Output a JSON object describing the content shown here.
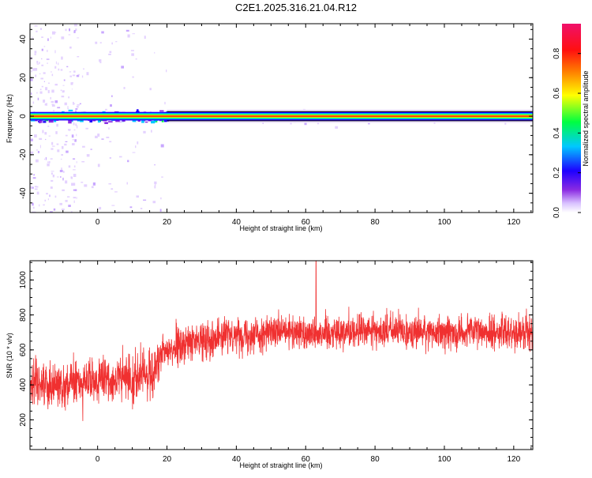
{
  "title": "C2E1.2025.316.21.04.R12",
  "colors": {
    "snr_line": "#f03030",
    "axis": "#000000",
    "colormap": [
      "#ffffff",
      "#c8a8ff",
      "#8a2be2",
      "#1e00ff",
      "#00c8ff",
      "#00ff40",
      "#ffff00",
      "#ff7a00",
      "#ff1010",
      "#f0106a"
    ]
  },
  "chart_data": [
    {
      "type": "heatmap",
      "name": "spectrogram",
      "xlabel": "Height of straight line (km)",
      "ylabel": "Frequency (Hz)",
      "xlim": [
        -19.5,
        125.5
      ],
      "ylim": [
        -50,
        48
      ],
      "xticks": [
        0,
        20,
        40,
        60,
        80,
        100,
        120
      ],
      "yticks": [
        -40,
        -20,
        0,
        20,
        40
      ],
      "ridge_frequency": 0,
      "ridge_x_range": [
        -19.5,
        125.5
      ],
      "noisy_region_x_range": [
        -19.5,
        20
      ],
      "colorbar": {
        "label": "Normalized spectral amplitude",
        "range": [
          0,
          0.95
        ],
        "ticks": [
          0.0,
          0.2,
          0.4,
          0.6,
          0.8
        ]
      }
    },
    {
      "type": "line",
      "name": "snr",
      "xlabel": "Height of straight line (km)",
      "ylabel": "SNR (10 * v/v)",
      "xlim": [
        -19.5,
        125.5
      ],
      "ylim": [
        30,
        1110
      ],
      "xticks": [
        0,
        20,
        40,
        60,
        80,
        100,
        120
      ],
      "yticks": [
        200,
        400,
        600,
        800,
        1000
      ],
      "trend": {
        "x": [
          -19.5,
          -10,
          0,
          10,
          16,
          20,
          30,
          40,
          60,
          80,
          100,
          125.5
        ],
        "mean": [
          420,
          400,
          420,
          440,
          470,
          600,
          660,
          690,
          700,
          710,
          700,
          705
        ],
        "spread": [
          190,
          200,
          200,
          210,
          220,
          170,
          160,
          150,
          155,
          150,
          150,
          150
        ]
      },
      "peak": {
        "x": 63,
        "value": 1110
      }
    }
  ]
}
